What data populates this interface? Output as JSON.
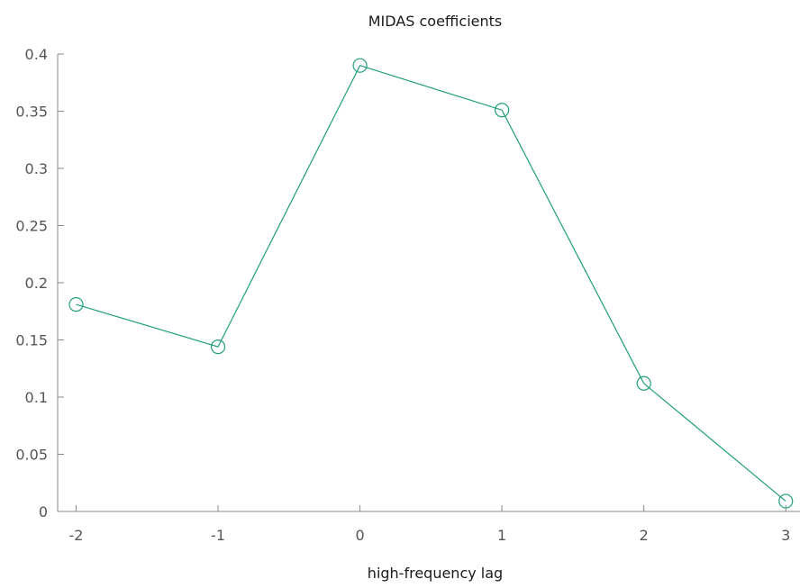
{
  "chart_data": {
    "type": "line",
    "title": "MIDAS coefficients",
    "xlabel": "high-frequency lag",
    "ylabel": "",
    "xlim": [
      -2.13,
      3.1
    ],
    "ylim": [
      0,
      0.4
    ],
    "x_ticks": [
      -2,
      -1,
      0,
      1,
      2,
      3
    ],
    "x_tick_labels": [
      "-2",
      "-1",
      "0",
      "1",
      "2",
      "3"
    ],
    "y_ticks": [
      0,
      0.05,
      0.1,
      0.15,
      0.2,
      0.25,
      0.3,
      0.35,
      0.4
    ],
    "y_tick_labels": [
      "0",
      "0.05",
      "0.1",
      "0.15",
      "0.2",
      "0.25",
      "0.3",
      "0.35",
      "0.4"
    ],
    "grid": false,
    "legend": "none",
    "series": [
      {
        "color": "#1f9e7a",
        "marker": "circle",
        "x": [
          -2,
          -1,
          0,
          1,
          2,
          3
        ],
        "y": [
          0.181,
          0.144,
          0.39,
          0.351,
          0.112,
          0.009
        ]
      }
    ]
  }
}
